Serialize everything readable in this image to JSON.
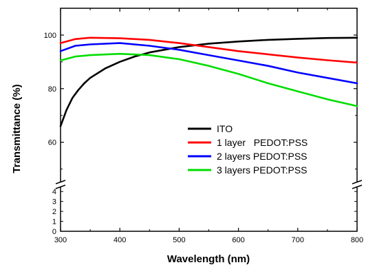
{
  "chart_data": {
    "type": "line",
    "xlabel": "Wavelength (nm)",
    "ylabel": "Transmittance (%)",
    "xlim": [
      300,
      800
    ],
    "x_ticks": [
      300,
      400,
      500,
      600,
      700,
      800
    ],
    "y_axis_break": true,
    "y_upper_range": [
      45,
      110
    ],
    "y_upper_ticks": [
      60,
      80,
      100
    ],
    "y_lower_range": [
      0,
      4.5
    ],
    "y_lower_ticks": [
      0,
      1,
      2,
      3,
      4
    ],
    "grid": false,
    "legend_position": "center-right",
    "series": [
      {
        "name": "ITO",
        "color": "#000000",
        "x": [
          300,
          310,
          320,
          330,
          340,
          350,
          375,
          400,
          425,
          450,
          500,
          550,
          600,
          650,
          700,
          750,
          800
        ],
        "y": [
          66,
          72,
          76.5,
          79.5,
          82,
          84,
          87.5,
          90,
          92,
          93.5,
          95.5,
          96.8,
          97.6,
          98.2,
          98.6,
          98.9,
          99
        ]
      },
      {
        "name": "1 layer   PEDOT:PSS",
        "color": "#ff0000",
        "x": [
          300,
          325,
          350,
          400,
          450,
          500,
          550,
          600,
          650,
          700,
          750,
          800
        ],
        "y": [
          97,
          98.5,
          99,
          98.8,
          98.2,
          97,
          95.5,
          94,
          92.8,
          91.6,
          90.6,
          89.7
        ]
      },
      {
        "name": "2 layers PEDOT:PSS",
        "color": "#0000ff",
        "x": [
          300,
          325,
          350,
          400,
          450,
          500,
          550,
          600,
          650,
          700,
          750,
          800
        ],
        "y": [
          94,
          96,
          96.5,
          97,
          96,
          94.5,
          92.5,
          90.5,
          88.5,
          86,
          84,
          82
        ]
      },
      {
        "name": "3 layers PEDOT:PSS",
        "color": "#00dd00",
        "x": [
          300,
          325,
          350,
          400,
          450,
          500,
          550,
          600,
          650,
          700,
          750,
          800
        ],
        "y": [
          90.5,
          92,
          92.5,
          93,
          92.5,
          91,
          88.5,
          85.5,
          82,
          79,
          76,
          73.5
        ]
      }
    ]
  }
}
